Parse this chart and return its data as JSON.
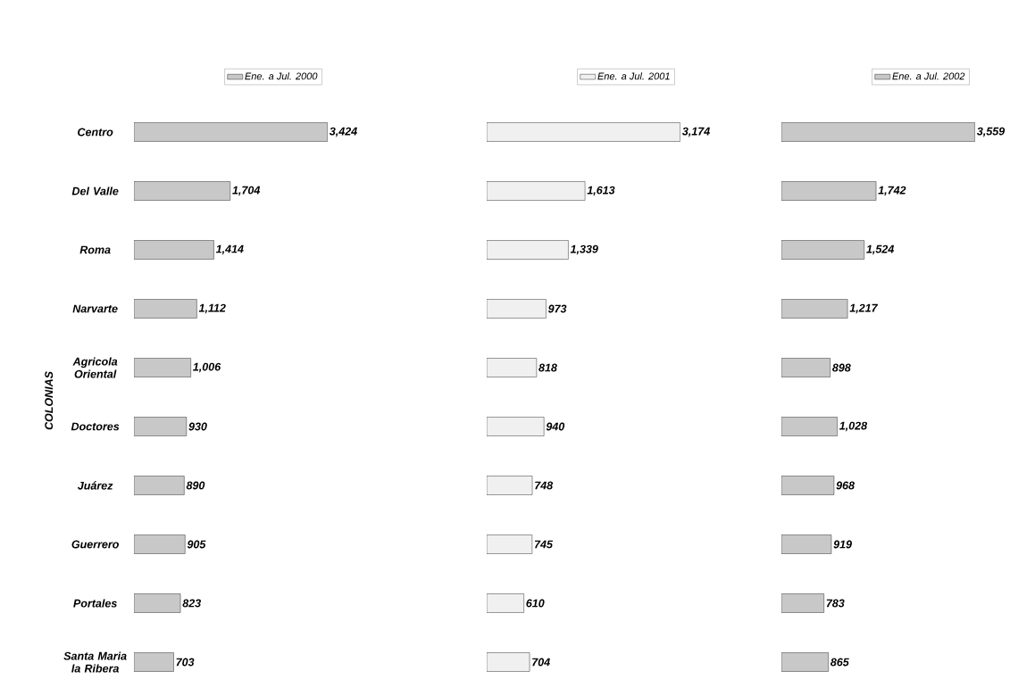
{
  "chart_data": [
    {
      "type": "bar",
      "orientation": "horizontal",
      "ylabel": "COLONIAS",
      "legend": "top",
      "tick_labels": "y",
      "categories": [
        "Centro",
        "Del Valle",
        "Roma",
        "Narvarte",
        "Agricola Oriental",
        "Doctores",
        "Juárez",
        "Guerrero",
        "Portales",
        "Santa Maria la Ribera"
      ],
      "series": [
        {
          "name": "Ene. a Jul. 2000",
          "color": "#c8c8c8",
          "values": [
            3424,
            1704,
            1414,
            1112,
            1006,
            930,
            890,
            905,
            823,
            703
          ],
          "value_labels": [
            "3,424",
            "1,704",
            "1,414",
            "1,112",
            "1,006",
            "930",
            "890",
            "905",
            "823",
            "703"
          ]
        }
      ]
    },
    {
      "type": "bar",
      "orientation": "horizontal",
      "legend": "top",
      "categories": [
        null,
        null,
        null,
        null,
        null,
        null,
        null,
        null,
        null,
        null
      ],
      "series": [
        {
          "name": "Ene. a Jul. 2001",
          "color": "#f0f0f0",
          "values": [
            3174,
            1613,
            1339,
            973,
            818,
            940,
            748,
            745,
            610,
            704
          ],
          "value_labels": [
            "3,174",
            "1,613",
            "1,339",
            "973",
            "818",
            "940",
            "748",
            "745",
            "610",
            "704"
          ]
        }
      ]
    },
    {
      "type": "bar",
      "orientation": "horizontal",
      "legend": "top",
      "categories": [
        null,
        null,
        null,
        null,
        null,
        null,
        null,
        null,
        null,
        null
      ],
      "series": [
        {
          "name": "Ene. a Jul. 2002",
          "color": "#c8c8c8",
          "values": [
            3559,
            1742,
            1524,
            1217,
            898,
            1028,
            968,
            919,
            783,
            865
          ],
          "value_labels": [
            "3,559",
            "1,742",
            "1,524",
            "1,217",
            "898",
            "1,028",
            "968",
            "919",
            "783",
            "865"
          ]
        }
      ]
    }
  ]
}
